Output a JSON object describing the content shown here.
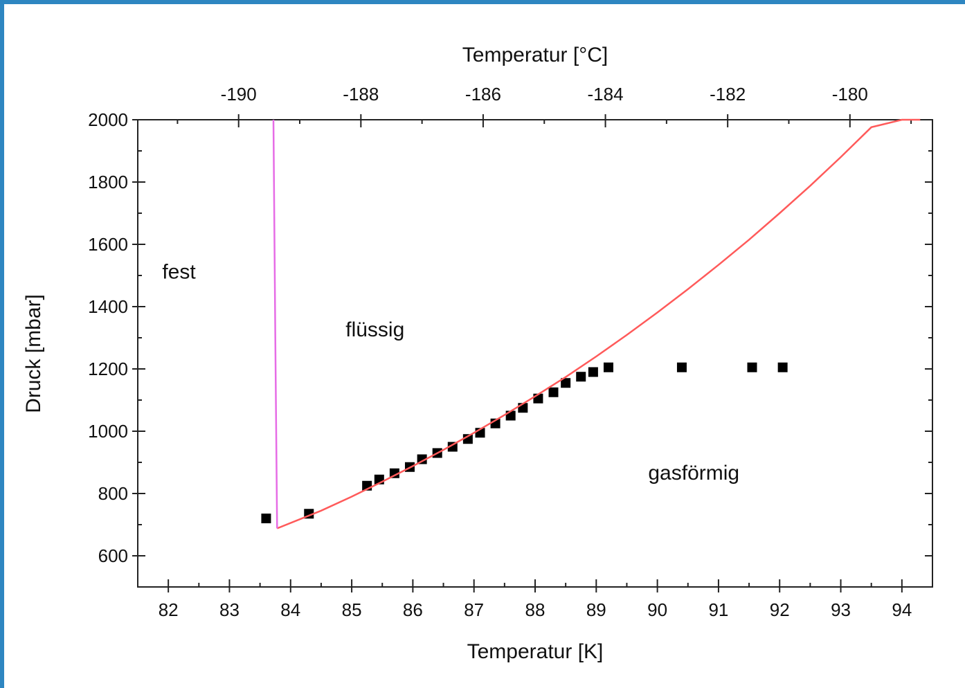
{
  "chart_data": {
    "type": "scatter",
    "title": "",
    "xlabel": "Temperatur [K]",
    "x2label": "Temperatur [°C]",
    "ylabel": "Druck [mbar]",
    "xlim": [
      81.5,
      94.5
    ],
    "ylim": [
      500,
      2000
    ],
    "x_ticks": [
      82,
      83,
      84,
      85,
      86,
      87,
      88,
      89,
      90,
      91,
      92,
      93,
      94
    ],
    "x2_ticks": [
      -190,
      -188,
      -186,
      -184,
      -182,
      -180
    ],
    "y_ticks": [
      600,
      800,
      1000,
      1200,
      1400,
      1600,
      1800,
      2000
    ],
    "grid": false,
    "kelvin_offset": 273.15,
    "regions": [
      {
        "label": "fest",
        "x": 81.9,
        "y": 1490
      },
      {
        "label": "flüssig",
        "x": 84.9,
        "y": 1305
      },
      {
        "label": "gasförmig",
        "x": 89.85,
        "y": 845
      }
    ],
    "series": [
      {
        "name": "",
        "kind": "points",
        "color": "#000000",
        "x": [
          83.6,
          84.3,
          85.25,
          85.45,
          85.7,
          85.95,
          86.15,
          86.4,
          86.65,
          86.9,
          87.1,
          87.35,
          87.6,
          87.8,
          88.05,
          88.3,
          88.5,
          88.75,
          88.95,
          89.2,
          90.4,
          91.55,
          92.05
        ],
        "y": [
          720,
          735,
          825,
          845,
          865,
          885,
          910,
          930,
          950,
          975,
          995,
          1025,
          1050,
          1075,
          1105,
          1125,
          1155,
          1175,
          1190,
          1205,
          1205,
          1205,
          1205
        ]
      },
      {
        "name": "",
        "kind": "line",
        "color": "#ff5a5a",
        "x": [
          83.78,
          84.5,
          85.0,
          85.5,
          86.0,
          86.5,
          87.0,
          87.5,
          88.0,
          88.5,
          89.0,
          89.5,
          90.0,
          90.5,
          91.0,
          91.5,
          92.0,
          92.5,
          93.0,
          93.5,
          94.0,
          94.3
        ],
        "y": [
          688,
          745,
          790,
          838,
          888,
          940,
          995,
          1052,
          1112,
          1174,
          1240,
          1309,
          1381,
          1456,
          1534,
          1615,
          1700,
          1788,
          1880,
          1976,
          2076,
          2000
        ]
      },
      {
        "name": "",
        "kind": "line",
        "color": "#e66ce6",
        "x": [
          83.72,
          83.75,
          83.78
        ],
        "y": [
          2000,
          1300,
          688
        ]
      }
    ]
  }
}
